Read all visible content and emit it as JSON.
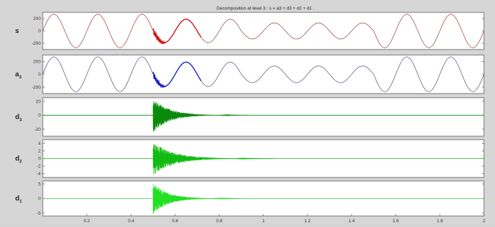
{
  "title": "Decomposition at level 3 : s = a3 + d3 + d2 + d1 .",
  "x_ticks": [
    "0.2",
    "0.4",
    "0.6",
    "0.8",
    "1",
    "1.2",
    "1.4",
    "1.6",
    "1.8",
    "2"
  ],
  "chart_data": [
    {
      "type": "line",
      "name": "s",
      "label": "s",
      "color_pre": "#8a3a3a",
      "color_transient": "#cc1111",
      "xlim": [
        0,
        2
      ],
      "ylim": [
        -300,
        300
      ],
      "yticks": [
        "200",
        "0",
        "-200"
      ],
      "ytick_values": [
        200,
        0,
        -200
      ],
      "series": [
        {
          "component": "sinusoid",
          "amplitude_segments": [
            {
              "x_start": 0.0,
              "x_end": 0.5,
              "amplitude": 270
            },
            {
              "x_start": 0.5,
              "x_end": 0.9,
              "amplitude": 190
            },
            {
              "x_start": 0.9,
              "x_end": 1.5,
              "amplitude": 130
            },
            {
              "x_start": 1.5,
              "x_end": 2.0,
              "amplitude": 270
            }
          ],
          "frequency_hz": 5,
          "disturbance_x": 0.5
        }
      ]
    },
    {
      "type": "line",
      "name": "a3",
      "label": "a",
      "label_sub": "3",
      "color_pre": "#4a4a7a",
      "color_transient": "#1a1acc",
      "xlim": [
        0,
        2
      ],
      "ylim": [
        -300,
        300
      ],
      "yticks": [
        "200",
        "0",
        "-200"
      ],
      "ytick_values": [
        200,
        0,
        -200
      ],
      "series": [
        {
          "component": "sinusoid",
          "amplitude_segments": [
            {
              "x_start": 0.0,
              "x_end": 0.5,
              "amplitude": 270
            },
            {
              "x_start": 0.5,
              "x_end": 0.9,
              "amplitude": 190
            },
            {
              "x_start": 0.9,
              "x_end": 1.5,
              "amplitude": 130
            },
            {
              "x_start": 1.5,
              "x_end": 2.0,
              "amplitude": 270
            }
          ],
          "frequency_hz": 5,
          "disturbance_x": 0.5
        }
      ]
    },
    {
      "type": "line",
      "name": "d3",
      "label": "d",
      "label_sub": "3",
      "color": "#0a8a0a",
      "xlim": [
        0,
        2
      ],
      "ylim": [
        -30,
        25
      ],
      "yticks": [
        "20",
        "0",
        "-20"
      ],
      "ytick_values": [
        20,
        0,
        -20
      ],
      "series": [
        {
          "component": "decaying_burst",
          "onset_x": 0.5,
          "peak": 25,
          "decay_end_x": 0.93
        }
      ]
    },
    {
      "type": "line",
      "name": "d2",
      "label": "d",
      "label_sub": "2",
      "color": "#11bb11",
      "xlim": [
        0,
        2
      ],
      "ylim": [
        -5,
        5
      ],
      "yticks": [
        "4",
        "2",
        "0",
        "-2",
        "-4"
      ],
      "ytick_values": [
        4,
        2,
        0,
        -2,
        -4
      ],
      "series": [
        {
          "component": "decaying_burst",
          "onset_x": 0.5,
          "peak": 4.5,
          "decay_end_x": 1.05
        }
      ]
    },
    {
      "type": "line",
      "name": "d1",
      "label": "d",
      "label_sub": "1",
      "color": "#22e022",
      "xlim": [
        0,
        2
      ],
      "ylim": [
        -6,
        6
      ],
      "yticks": [
        "5",
        "0",
        "-5"
      ],
      "ytick_values": [
        5,
        0,
        -5
      ],
      "series": [
        {
          "component": "decaying_burst",
          "onset_x": 0.5,
          "peak": 5.5,
          "decay_end_x": 0.9
        }
      ]
    }
  ]
}
